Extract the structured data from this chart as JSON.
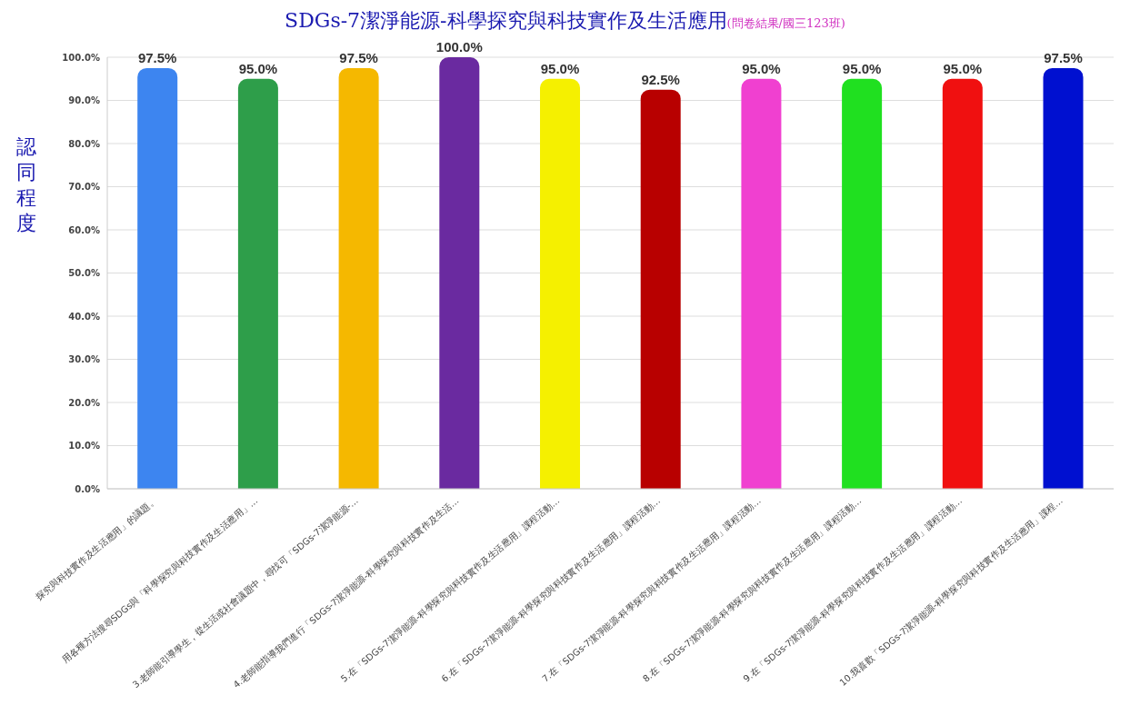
{
  "chart_data": {
    "type": "bar",
    "title": "SDGs-7潔淨能源-科學探究與科技實作及生活應用",
    "subtitle": "(問卷結果/國三123班)",
    "ylabel": "認同程度",
    "categories": [
      "探究與科技實作及生活應用」的議題。",
      "用各種方法搜尋SDGs與「科學探究與科技實作及生活應用」…",
      "3.老師能引導學生，從生活或社會議題中，尋找可「SDGs-7潔淨能源-…",
      "4.老師能指導我們進行「SDGs-7潔淨能源-科學探究與科技實作及生活…",
      "5.在「SDGs-7潔淨能源-科學探究與科技實作及生活應用」課程活動…",
      "6.在「SDGs-7潔淨能源-科學探究與科技實作及生活應用」課程活動…",
      "7.在「SDGs-7潔淨能源-科學探究與科技實作及生活應用」課程活動…",
      "8.在「SDGs-7潔淨能源-科學探究與科技實作及生活應用」課程活動…",
      "9.在「SDGs-7潔淨能源-科學探究與科技實作及生活應用」課程活動…",
      "10.我喜歡「SDGs-7潔淨能源-科學探究與科技實作及生活應用」課程…"
    ],
    "values": [
      97.5,
      95,
      97.5,
      100,
      95,
      92.5,
      95,
      95,
      95,
      97.5
    ],
    "value_labels": [
      "97.5%",
      "95.0%",
      "97.5%",
      "100.0%",
      "95.0%",
      "92.5%",
      "95.0%",
      "95.0%",
      "95.0%",
      "97.5%"
    ],
    "colors": [
      "#3d85f0",
      "#2e9e4a",
      "#f5b800",
      "#6a2aa0",
      "#f5f000",
      "#b80000",
      "#f040d0",
      "#20e020",
      "#f01010",
      "#0010d0"
    ],
    "ylim": [
      0,
      100
    ],
    "yticks": [
      {
        "value": 0,
        "label": "0.0%"
      },
      {
        "value": 10,
        "label": "10.0%"
      },
      {
        "value": 20,
        "label": "20.0%"
      },
      {
        "value": 30,
        "label": "30.0%"
      },
      {
        "value": 40,
        "label": "40.0%"
      },
      {
        "value": 50,
        "label": "50.0%"
      },
      {
        "value": 60,
        "label": "60.0%"
      },
      {
        "value": 70,
        "label": "70.0%"
      },
      {
        "value": 80,
        "label": "80.0%"
      },
      {
        "value": 90,
        "label": "90.0%"
      },
      {
        "value": 100,
        "label": "100.0%"
      }
    ],
    "grid": "y",
    "legend": false
  }
}
